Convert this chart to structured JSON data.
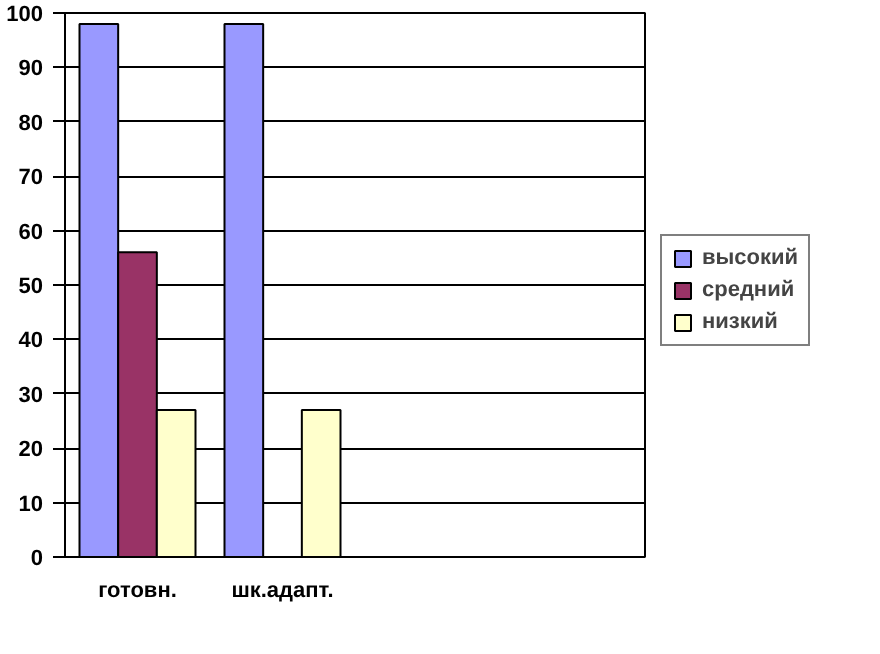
{
  "chart_data": {
    "type": "bar",
    "categories": [
      "готовн.",
      "шк.адапт.",
      null,
      null
    ],
    "series": [
      {
        "name": "высокий",
        "color": "#9999ff",
        "values": [
          98,
          98,
          null,
          null
        ]
      },
      {
        "name": "средний",
        "color": "#993366",
        "values": [
          56,
          null,
          null,
          null
        ]
      },
      {
        "name": "низкий",
        "color": "#ffffcc",
        "values": [
          27,
          27,
          null,
          null
        ]
      }
    ],
    "ylim": [
      0,
      100
    ],
    "yticks": [
      0,
      10,
      20,
      30,
      40,
      50,
      60,
      70,
      80,
      90,
      100
    ],
    "grid": "y",
    "legend": "right"
  }
}
